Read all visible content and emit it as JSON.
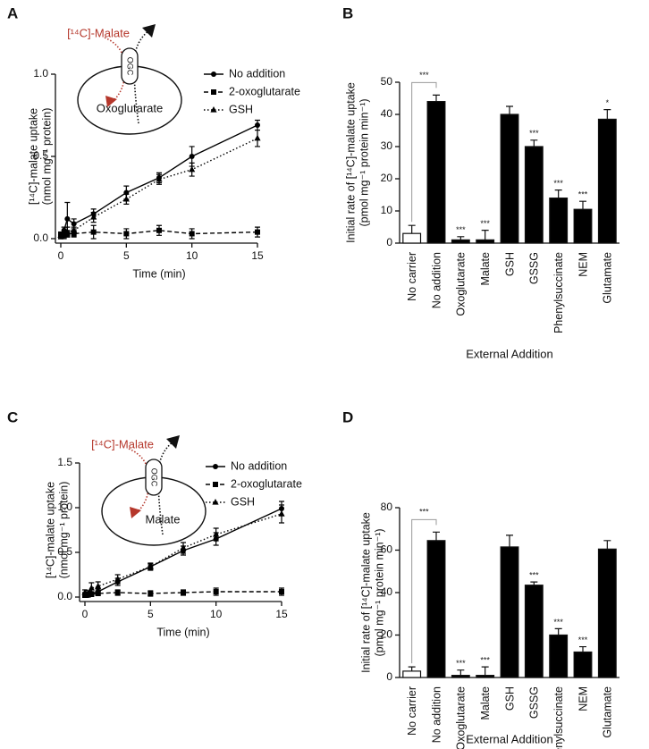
{
  "chart_data": [
    {
      "type": "line",
      "label": "A",
      "x_label": "Time (min)",
      "y_label": [
        "[¹⁴C]-malate uptake",
        "(nmol mg⁻¹ protein)"
      ],
      "x": [
        0,
        0.25,
        0.5,
        1,
        2.5,
        5,
        7.5,
        10,
        15
      ],
      "xlim": [
        0,
        15
      ],
      "xticks": [
        0,
        5,
        10,
        15
      ],
      "ylim": [
        0,
        1
      ],
      "yticks": [
        {
          "value": 0,
          "label": "0.0"
        },
        0.5,
        {
          "value": 1,
          "label": "1.0"
        }
      ],
      "series": [
        {
          "name": "No addition",
          "color": "#000000",
          "marker": "circle",
          "linestyle": "solid",
          "values": [
            0.02,
            0.05,
            0.12,
            0.09,
            0.15,
            0.28,
            0.37,
            0.5,
            0.69
          ],
          "errors": [
            0.02,
            0.02,
            0.1,
            0.03,
            0.03,
            0.04,
            0.03,
            0.06,
            0.03
          ]
        },
        {
          "name": "2-oxoglutarate",
          "color": "#000000",
          "marker": "square",
          "linestyle": "dashed",
          "values": [
            0.02,
            0.02,
            0.03,
            0.03,
            0.04,
            0.03,
            0.05,
            0.03,
            0.04
          ],
          "errors": [
            0.02,
            0.02,
            0.02,
            0.02,
            0.04,
            0.03,
            0.03,
            0.03,
            0.03
          ]
        },
        {
          "name": "GSH",
          "color": "#000000",
          "marker": "triangle",
          "linestyle": "dotted",
          "values": [
            0.02,
            0.03,
            0.04,
            0.05,
            0.13,
            0.24,
            0.36,
            0.42,
            0.61
          ],
          "errors": [
            0.02,
            0.02,
            0.03,
            0.02,
            0.03,
            0.03,
            0.03,
            0.04,
            0.05
          ]
        }
      ],
      "inset": {
        "outside": "[¹⁴C]-Malate",
        "carrier": "OGC",
        "inside": "Oxoglutarate"
      }
    },
    {
      "type": "bar",
      "label": "B",
      "x_label": "External Addition",
      "y_label": [
        "Initial rate of [¹⁴C]-malate uptake",
        "(pmol mg⁻¹ protein min⁻¹)"
      ],
      "categories": [
        "No carrier",
        "No addition",
        "Oxoglutarate",
        "Malate",
        "GSH",
        "GSSG",
        "Phenylsuccinate",
        "NEM",
        "Glutamate"
      ],
      "values": [
        3,
        44,
        1,
        1,
        40,
        30,
        14,
        10.5,
        38.5
      ],
      "errors": [
        2.5,
        2,
        1,
        3,
        2.5,
        2,
        2.5,
        2.5,
        3
      ],
      "colors": [
        "#ffffff",
        "#000000",
        "#000000",
        "#000000",
        "#000000",
        "#000000",
        "#000000",
        "#000000",
        "#000000"
      ],
      "significance": [
        null,
        "***",
        "***",
        "***",
        null,
        "***",
        "***",
        "***",
        "*"
      ],
      "ylim": [
        0,
        50
      ],
      "yticks": [
        0,
        10,
        20,
        30,
        40,
        50
      ]
    },
    {
      "type": "line",
      "label": "C",
      "x_label": "Time (min)",
      "y_label": [
        "[¹⁴C]-malate uptake",
        "(nmol mg⁻¹ protein)"
      ],
      "x": [
        0,
        0.25,
        0.5,
        1,
        2.5,
        5,
        7.5,
        10,
        15
      ],
      "xlim": [
        0,
        15
      ],
      "xticks": [
        0,
        5,
        10,
        15
      ],
      "ylim": [
        0,
        1.5
      ],
      "yticks": [
        {
          "value": 0,
          "label": "0.0"
        },
        0.5,
        {
          "value": 1,
          "label": "1.0"
        },
        1.5
      ],
      "series": [
        {
          "name": "No addition",
          "color": "#000000",
          "marker": "circle",
          "linestyle": "solid",
          "values": [
            0.03,
            0.02,
            0.04,
            0.06,
            0.17,
            0.34,
            0.52,
            0.65,
            0.99
          ],
          "errors": [
            0.02,
            0.02,
            0.02,
            0.03,
            0.04,
            0.03,
            0.05,
            0.07,
            0.08
          ]
        },
        {
          "name": "2-oxoglutarate",
          "color": "#000000",
          "marker": "square",
          "linestyle": "dashed",
          "values": [
            0.02,
            0.03,
            0.03,
            0.04,
            0.05,
            0.04,
            0.05,
            0.06,
            0.06
          ],
          "errors": [
            0.02,
            0.02,
            0.02,
            0.02,
            0.03,
            0.03,
            0.03,
            0.04,
            0.04
          ]
        },
        {
          "name": "GSH",
          "color": "#000000",
          "marker": "triangle",
          "linestyle": "dotted",
          "values": [
            0.05,
            0.04,
            0.1,
            0.12,
            0.2,
            0.34,
            0.55,
            0.7,
            0.93
          ],
          "errors": [
            0.03,
            0.03,
            0.06,
            0.05,
            0.05,
            0.04,
            0.06,
            0.07,
            0.1
          ]
        }
      ],
      "inset": {
        "outside": "[¹⁴C]-Malate",
        "carrier": "OGC",
        "inside": "Malate"
      }
    },
    {
      "type": "bar",
      "label": "D",
      "x_label": "External Addition",
      "y_label": [
        "Initial rate of [¹⁴C]-malate uptake",
        "(pmol mg⁻¹ protein min⁻¹)"
      ],
      "categories": [
        "No carrier",
        "No addition",
        "Oxoglutarate",
        "Malate",
        "GSH",
        "GSSG",
        "Phenylsuccinate",
        "NEM",
        "Glutamate"
      ],
      "values": [
        3,
        64.5,
        1,
        1,
        61.5,
        43.5,
        20,
        12,
        60.5
      ],
      "errors": [
        2,
        4,
        2.5,
        4,
        5.5,
        1.5,
        3,
        2.5,
        4
      ],
      "colors": [
        "#ffffff",
        "#000000",
        "#000000",
        "#000000",
        "#000000",
        "#000000",
        "#000000",
        "#000000",
        "#000000"
      ],
      "significance": [
        null,
        "***",
        "***",
        "***",
        null,
        "***",
        "***",
        "***",
        null
      ],
      "ylim": [
        0,
        80
      ],
      "yticks": [
        0,
        20,
        40,
        60,
        80
      ]
    }
  ]
}
